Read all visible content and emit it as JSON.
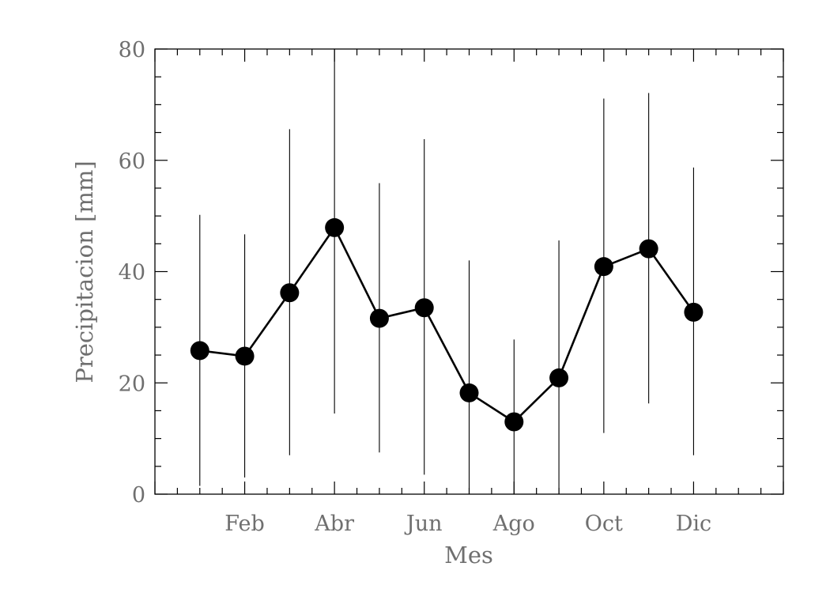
{
  "chart_data": {
    "type": "line",
    "title": "",
    "xlabel": "Mes",
    "ylabel": "Precipitacion [mm]",
    "xlim": [
      0,
      14
    ],
    "ylim": [
      0,
      80
    ],
    "x_ticks": [
      {
        "x": 2,
        "label": "Feb"
      },
      {
        "x": 4,
        "label": "Abr"
      },
      {
        "x": 6,
        "label": "Jun"
      },
      {
        "x": 8,
        "label": "Ago"
      },
      {
        "x": 10,
        "label": "Oct"
      },
      {
        "x": 12,
        "label": "Dic"
      }
    ],
    "y_ticks": [
      0,
      20,
      40,
      60,
      80
    ],
    "grid": false,
    "series": [
      {
        "x": [
          1,
          2,
          3,
          4,
          5,
          6,
          7,
          8,
          9,
          10,
          11,
          12
        ],
        "values": [
          25.8,
          24.8,
          36.2,
          47.9,
          31.6,
          33.5,
          18.2,
          13.0,
          20.9,
          40.9,
          44.1,
          32.7
        ],
        "err_low": [
          1.5,
          3.0,
          7.0,
          14.5,
          7.5,
          3.5,
          0.0,
          0.0,
          0.0,
          11.0,
          16.3,
          7.0
        ],
        "err_high": [
          50.2,
          46.7,
          65.6,
          80.0,
          55.9,
          63.8,
          42.0,
          27.8,
          45.6,
          71.1,
          72.1,
          58.7
        ]
      }
    ],
    "colors": {
      "axis": "#000000",
      "text": "#6f6f6f",
      "line": "#000000",
      "marker": "#000000"
    }
  }
}
